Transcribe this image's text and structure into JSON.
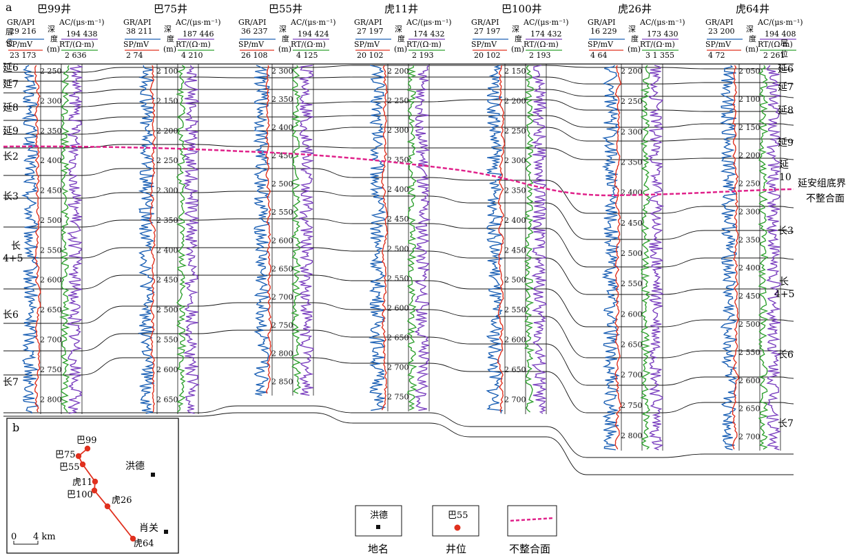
{
  "panel_labels": {
    "a": "a",
    "b": "b"
  },
  "well_suffix": "井",
  "header_labels": {
    "gr": "GR/API",
    "sp": "SP/mV",
    "depth_chars": [
      "深",
      "度"
    ],
    "depth_unit": "(m)",
    "ac": "AC/(μs·m⁻¹)",
    "rt": "RT/(Ω·m)",
    "layer_left": [
      "层",
      "位"
    ],
    "layer_right": [
      "层",
      "位"
    ]
  },
  "wells": [
    {
      "name": "巴99",
      "gr_range": "29  216",
      "sp_range": "23  173",
      "ac_range": "194  438",
      "rt_range": "2  636",
      "depth_ticks": [
        "2 250",
        "2 300",
        "2 350",
        "2 400",
        "2 450",
        "2 500",
        "2 550",
        "2 600",
        "2 650",
        "2 700",
        "2 750",
        "2 800"
      ]
    },
    {
      "name": "巴75",
      "gr_range": "38  211",
      "sp_range": "2  74",
      "ac_range": "187  446",
      "rt_range": "4  210",
      "depth_ticks": [
        "2 100",
        "2 150",
        "2 200",
        "2 250",
        "2 300",
        "2 350",
        "2 400",
        "2 450",
        "2 500",
        "2 550",
        "2 600",
        "2 650"
      ]
    },
    {
      "name": "巴55",
      "gr_range": "36  237",
      "sp_range": "26  108",
      "ac_range": "194  424",
      "rt_range": "4  125",
      "depth_ticks": [
        "2 300",
        "2 350",
        "2 400",
        "2 450",
        "2 500",
        "2 550",
        "2 600",
        "2 650",
        "2 700",
        "2 750",
        "2 800",
        "2 850"
      ]
    },
    {
      "name": "虎11",
      "gr_range": "27  197",
      "sp_range": "20  102",
      "ac_range": "174  432",
      "rt_range": "2  193",
      "depth_ticks": [
        "2 200",
        "2 250",
        "2 300",
        "2 350",
        "2 400",
        "2 450",
        "2 500",
        "2 550",
        "2 600",
        "2 650",
        "2 700",
        "2 750"
      ]
    },
    {
      "name": "巴100",
      "gr_range": "27  197",
      "sp_range": "20  102",
      "ac_range": "174  432",
      "rt_range": "2  193",
      "depth_ticks": [
        "2 150",
        "2 200",
        "2 250",
        "2 300",
        "2 350",
        "2 400",
        "2 450",
        "2 500",
        "2 550",
        "2 600",
        "2 650",
        "2 700"
      ]
    },
    {
      "name": "虎26",
      "gr_range": "16  229",
      "sp_range": "4  64",
      "ac_range": "173  430",
      "rt_range": "3  1 355",
      "depth_ticks": [
        "2 200",
        "2 250",
        "2 300",
        "2 350",
        "2 400",
        "2 450",
        "2 500",
        "2 550",
        "2 600",
        "2 650",
        "2 700",
        "2 750",
        "2 800"
      ]
    },
    {
      "name": "虎64",
      "gr_range": "23  200",
      "sp_range": "4  72",
      "ac_range": "194  408",
      "rt_range": "2  261",
      "depth_ticks": [
        "2 050",
        "2 100",
        "2 150",
        "2 200",
        "2 250",
        "2 300",
        "2 350",
        "2 400",
        "2 450",
        "2 500",
        "2 550",
        "2 600",
        "2 650",
        "2 700"
      ]
    }
  ],
  "left_layers": [
    "延6",
    "延7",
    "延8",
    "延9",
    "长2",
    "长3",
    "长4+5",
    "长6",
    "长7"
  ],
  "right_layers": [
    "延6",
    "延7",
    "延8",
    "延9",
    "延10",
    "长3",
    "长4+5",
    "长6",
    "长7"
  ],
  "unconformity_label": [
    "延安组底界",
    "不整合面"
  ],
  "map": {
    "wells": [
      "巴99",
      "巴75",
      "巴55",
      "虎11",
      "巴100",
      "虎26",
      "虎64"
    ],
    "places": [
      "洪德",
      "肖关"
    ],
    "scale_zero": "0",
    "scale_label": "4 km"
  },
  "legend": [
    {
      "box_text": "洪德",
      "caption": "地名"
    },
    {
      "box_text": "巴55",
      "caption": "井位"
    },
    {
      "box_text": "",
      "caption": "不整合面"
    }
  ],
  "colors": {
    "gr": "#1a5fb4",
    "sp": "#e0301e",
    "ac": "#7a3fbf",
    "rt": "#2ea02e",
    "unconformity": "#e0218a",
    "well_marker": "#e0301e"
  }
}
